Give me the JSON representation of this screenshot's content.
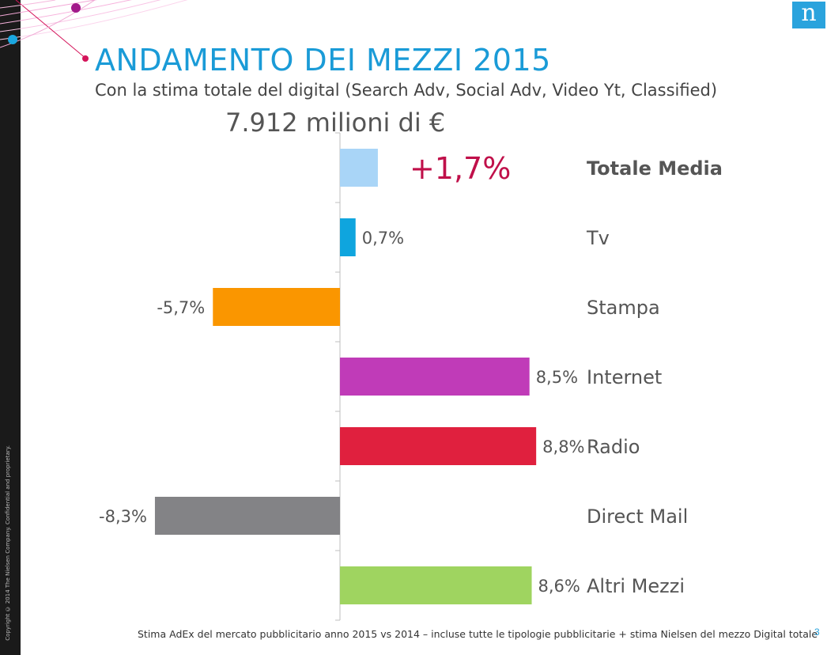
{
  "slide": {
    "title": "ANDAMENTO DEI MEZZI 2015",
    "subtitle": "Con la stima totale del digital (Search Adv, Social Adv, Video Yt, Classified)",
    "total": "7.912 milioni di €",
    "footnote": "Stima AdEx del mercato pubblicitario anno 2015 vs 2014 – incluse  tutte le tipologie pubblicitarie + stima Nielsen del mezzo Digital totale",
    "page_number": "3",
    "copyright": "Copyright © 2014 The Nielsen Company. Confidential and proprietary.",
    "logo_letter": "n"
  },
  "chart_data": {
    "type": "bar",
    "orientation": "horizontal",
    "categories": [
      "Totale Media",
      "Tv",
      "Stampa",
      "Internet",
      "Radio",
      "Direct Mail",
      "Altri Mezzi"
    ],
    "values": [
      1.7,
      0.7,
      -5.7,
      8.5,
      8.8,
      -8.3,
      8.6
    ],
    "value_labels": [
      "+1,7%",
      "0,7%",
      "-5,7%",
      "8,5%",
      "8,8%",
      "-8,3%",
      "8,6%"
    ],
    "colors": [
      "#a9d5f7",
      "#0fa5de",
      "#fa9600",
      "#c03bb8",
      "#e0203e",
      "#838386",
      "#9fd460"
    ],
    "label_colors": [
      "#c0104a",
      "#555555",
      "#555555",
      "#555555",
      "#555555",
      "#555555",
      "#555555"
    ],
    "highlight_category": "Totale Media"
  }
}
